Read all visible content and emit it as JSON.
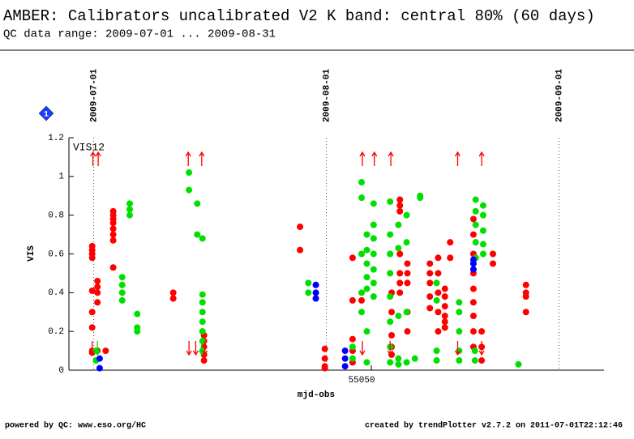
{
  "chart_data": {
    "type": "scatter",
    "title": "AMBER: Calibrators uncalibrated V2 K band: central 80% (60 days)",
    "subtitle": "QC data range: 2009-07-01 ... 2009-08-31",
    "x_label": "mjd-obs",
    "y_label": "VIS",
    "annotation": "VIS12",
    "badge": "1",
    "footer_left": "powered by QC: www.eso.org/HC",
    "footer_right": "created by trendPlotter v2.7.2 on 2011-07-01T22:12:46",
    "xlim": [
      55009.7,
      55081
    ],
    "ylim": [
      0,
      1.2
    ],
    "xticks": [
      55050
    ],
    "yticks": [
      0,
      0.2,
      0.4,
      0.6,
      0.8,
      1,
      1.2
    ],
    "date_lines": [
      {
        "value": 55013,
        "label": "2009-07-01"
      },
      {
        "value": 55044,
        "label": "2009-08-01"
      },
      {
        "value": 55075,
        "label": "2009-09-01"
      }
    ],
    "series": [
      {
        "color": "#ff0000",
        "x": [
          55012.8,
          55012.8,
          55012.8,
          55012.8,
          55012.8,
          55012.8,
          55012.8,
          55012.8,
          55012.8,
          55013.5,
          55013.5,
          55013.5,
          55013.5,
          55013.5,
          55014.6,
          55015.6,
          55015.6,
          55015.6,
          55015.6,
          55015.6,
          55015.6,
          55015.6,
          55015.6,
          55023.6,
          55023.6,
          55027.7,
          55027.7,
          55027.7,
          55027.7,
          55027.7,
          55040.5,
          55040.5,
          55043.8,
          55043.8,
          55043.8,
          55043.8,
          55047.5,
          55047.5,
          55047.5,
          55047.5,
          55047.5,
          55048.7,
          55052.7,
          55052.7,
          55052.7,
          55052.7,
          55052.7,
          55053.8,
          55053.8,
          55053.8,
          55053.8,
          55053.8,
          55053.8,
          55053.8,
          55054.8,
          55054.8,
          55054.8,
          55054.8,
          55054.8,
          55057.8,
          55057.8,
          55057.8,
          55057.8,
          55057.8,
          55058.9,
          55058.9,
          55058.9,
          55058.9,
          55058.9,
          55059.8,
          55059.8,
          55059.8,
          55059.8,
          55059.8,
          55059.8,
          55060.5,
          55060.5,
          55063.6,
          55063.6,
          55063.6,
          55063.6,
          55063.6,
          55063.6,
          55063.6,
          55063.6,
          55063.6,
          55064.7,
          55064.7,
          55064.7,
          55066.2,
          55066.2,
          55070.6,
          55070.6,
          55070.6,
          55070.6
        ],
        "values": [
          0.64,
          0.62,
          0.6,
          0.58,
          0.41,
          0.3,
          0.22,
          0.1,
          0.09,
          0.46,
          0.43,
          0.4,
          0.35,
          0.1,
          0.1,
          0.82,
          0.8,
          0.78,
          0.76,
          0.73,
          0.7,
          0.67,
          0.53,
          0.4,
          0.37,
          0.18,
          0.15,
          0.12,
          0.08,
          0.05,
          0.74,
          0.62,
          0.11,
          0.06,
          0.02,
          0.01,
          0.58,
          0.36,
          0.16,
          0.1,
          0.04,
          0.36,
          0.4,
          0.3,
          0.18,
          0.12,
          0.08,
          0.88,
          0.85,
          0.82,
          0.6,
          0.5,
          0.45,
          0.4,
          0.55,
          0.5,
          0.45,
          0.3,
          0.2,
          0.55,
          0.5,
          0.45,
          0.38,
          0.32,
          0.58,
          0.5,
          0.4,
          0.3,
          0.2,
          0.42,
          0.38,
          0.33,
          0.28,
          0.25,
          0.22,
          0.66,
          0.58,
          0.78,
          0.7,
          0.6,
          0.5,
          0.42,
          0.35,
          0.28,
          0.2,
          0.12,
          0.2,
          0.12,
          0.05,
          0.6,
          0.55,
          0.44,
          0.4,
          0.38,
          0.3
        ]
      },
      {
        "color": "#00e000",
        "x": [
          55013.3,
          55013.3,
          55016.8,
          55016.8,
          55016.8,
          55016.8,
          55017.8,
          55017.8,
          55017.8,
          55018.8,
          55018.8,
          55018.8,
          55025.7,
          55025.7,
          55026.8,
          55026.8,
          55027.5,
          55027.5,
          55027.5,
          55027.5,
          55027.5,
          55027.5,
          55027.5,
          55027.5,
          55041.6,
          55041.6,
          55047.5,
          55047.5,
          55048.7,
          55048.7,
          55048.7,
          55048.7,
          55048.7,
          55049.4,
          55049.4,
          55049.4,
          55049.4,
          55049.4,
          55049.4,
          55049.4,
          55050.3,
          55050.3,
          55050.3,
          55050.3,
          55050.3,
          55050.3,
          55050.3,
          55052.5,
          55052.5,
          55052.5,
          55052.5,
          55052.5,
          55052.5,
          55052.5,
          55052.5,
          55053.6,
          55053.6,
          55053.6,
          55053.6,
          55053.6,
          55054.7,
          55054.7,
          55054.7,
          55054.7,
          55056.5,
          55056.5,
          55055.8,
          55058.7,
          55058.7,
          55058.7,
          55058.7,
          55061.7,
          55061.7,
          55061.7,
          55061.7,
          55061.7,
          55063.9,
          55063.9,
          55063.9,
          55063.9,
          55063.9,
          55064.9,
          55064.9,
          55064.9,
          55064.9,
          55064.9,
          55063.8,
          55063.8,
          55069.6
        ],
        "values": [
          0.1,
          0.05,
          0.48,
          0.44,
          0.4,
          0.36,
          0.86,
          0.83,
          0.8,
          0.29,
          0.22,
          0.2,
          1.02,
          0.93,
          0.86,
          0.7,
          0.68,
          0.39,
          0.35,
          0.3,
          0.25,
          0.2,
          0.15,
          0.1,
          0.45,
          0.4,
          0.12,
          0.06,
          0.97,
          0.89,
          0.6,
          0.4,
          0.3,
          0.7,
          0.62,
          0.55,
          0.48,
          0.42,
          0.2,
          0.04,
          0.86,
          0.75,
          0.68,
          0.6,
          0.52,
          0.45,
          0.38,
          0.87,
          0.7,
          0.6,
          0.5,
          0.38,
          0.25,
          0.12,
          0.04,
          0.75,
          0.63,
          0.28,
          0.06,
          0.03,
          0.8,
          0.66,
          0.3,
          0.04,
          0.9,
          0.89,
          0.06,
          0.45,
          0.36,
          0.1,
          0.05,
          0.35,
          0.3,
          0.2,
          0.1,
          0.05,
          0.88,
          0.82,
          0.75,
          0.66,
          0.58,
          0.85,
          0.8,
          0.72,
          0.65,
          0.6,
          0.1,
          0.05,
          0.03
        ]
      },
      {
        "color": "#0000ff",
        "x": [
          55013.8,
          55013.8,
          55042.6,
          55042.6,
          55042.6,
          55046.5,
          55046.5,
          55046.5,
          55063.6,
          55063.6,
          55063.6
        ],
        "values": [
          0.06,
          0.01,
          0.44,
          0.4,
          0.37,
          0.1,
          0.06,
          0.02,
          0.57,
          0.55,
          0.52
        ]
      }
    ],
    "arrows": [
      {
        "x": 55012.9,
        "direction": "up",
        "color": "#ff0000"
      },
      {
        "x": 55013.6,
        "direction": "up",
        "color": "#ff0000"
      },
      {
        "x": 55025.6,
        "direction": "up",
        "color": "#ff0000"
      },
      {
        "x": 55027.4,
        "direction": "up",
        "color": "#ff0000"
      },
      {
        "x": 55048.8,
        "direction": "up",
        "color": "#ff0000"
      },
      {
        "x": 55050.4,
        "direction": "up",
        "color": "#ff0000"
      },
      {
        "x": 55052.6,
        "direction": "up",
        "color": "#ff0000"
      },
      {
        "x": 55061.5,
        "direction": "up",
        "color": "#ff0000"
      },
      {
        "x": 55064.7,
        "direction": "up",
        "color": "#ff0000"
      },
      {
        "x": 55012.8,
        "direction": "down",
        "color": "#ff0000"
      },
      {
        "x": 55013.5,
        "direction": "down",
        "color": "#00e000"
      },
      {
        "x": 55025.7,
        "direction": "down",
        "color": "#ff0000"
      },
      {
        "x": 55026.6,
        "direction": "down",
        "color": "#ff0000"
      },
      {
        "x": 55027.4,
        "direction": "down",
        "color": "#00e000"
      },
      {
        "x": 55027.8,
        "direction": "down",
        "color": "#ff0000"
      },
      {
        "x": 55048.8,
        "direction": "down",
        "color": "#ff0000"
      },
      {
        "x": 55052.5,
        "direction": "down",
        "color": "#ff0000"
      },
      {
        "x": 55061.5,
        "direction": "down",
        "color": "#ff0000"
      },
      {
        "x": 55064.7,
        "direction": "down",
        "color": "#ff0000"
      }
    ]
  }
}
